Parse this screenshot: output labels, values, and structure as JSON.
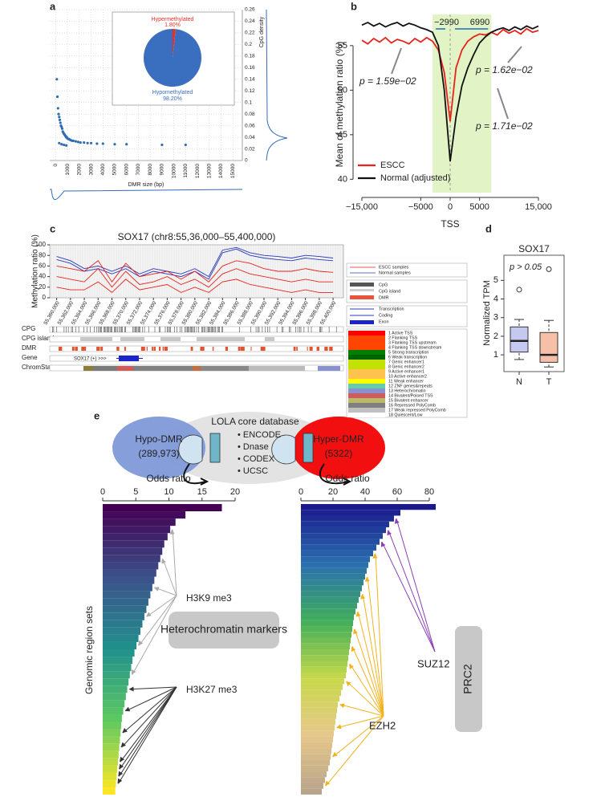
{
  "panel_labels": [
    "a",
    "b",
    "c",
    "d",
    "e"
  ],
  "chart_data": [
    {
      "type": "scatter",
      "xlabel": "DMR size (bp)",
      "ylabel": "CpG density",
      "color": "#2f6db5",
      "grid": true,
      "xlim": [
        -500,
        15800
      ],
      "ylim": [
        0,
        0.26
      ],
      "xticks": [
        0,
        1000,
        2000,
        3000,
        4000,
        5000,
        6000,
        7000,
        8000,
        9000,
        10000,
        11000,
        12000,
        13000,
        14000,
        15000
      ],
      "yticks": [
        0,
        0.02,
        0.04,
        0.06,
        0.08,
        0.1,
        0.12,
        0.14,
        0.16,
        0.18,
        0.2,
        0.22,
        0.24,
        0.26
      ],
      "x": [
        100,
        150,
        200,
        250,
        300,
        350,
        400,
        450,
        500,
        550,
        600,
        650,
        700,
        750,
        800,
        850,
        900,
        950,
        1000,
        1100,
        1200,
        1300,
        1400,
        1500,
        1700,
        1900,
        2100,
        2400,
        2700,
        3000,
        3500,
        4000,
        5000,
        6000,
        9000,
        11000,
        300,
        500,
        700,
        900
      ],
      "y": [
        0.14,
        0.11,
        0.09,
        0.08,
        0.075,
        0.07,
        0.065,
        0.06,
        0.058,
        0.055,
        0.05,
        0.048,
        0.046,
        0.045,
        0.043,
        0.042,
        0.04,
        0.04,
        0.038,
        0.037,
        0.036,
        0.035,
        0.034,
        0.034,
        0.033,
        0.032,
        0.031,
        0.031,
        0.03,
        0.03,
        0.029,
        0.029,
        0.028,
        0.028,
        0.027,
        0.027,
        0.03,
        0.028,
        0.027,
        0.026
      ]
    },
    {
      "type": "pie",
      "categories": [
        "Hypermethylated",
        "Hypomethylated"
      ],
      "values": [
        1.8,
        98.2
      ],
      "value_labels": [
        "1.80%",
        "98.20%"
      ],
      "colors": [
        "#e8302a",
        "#3a6fc0"
      ]
    },
    {
      "type": "line",
      "xlabel": "TSS",
      "ylabel": "Mean of methylation ratio (%)",
      "xlim": [
        -16500,
        16500
      ],
      "ylim": [
        38.5,
        58.5
      ],
      "xticks": [
        {
          "value": -15000,
          "label": "−15,000"
        },
        {
          "value": -5000,
          "label": "−5000"
        },
        0,
        5000,
        {
          "value": 15000,
          "label": "15,000"
        }
      ],
      "yticks": [
        40,
        45,
        50,
        55
      ],
      "region": [
        {
          "value": -2990,
          "label": "−2990"
        },
        6990
      ],
      "region_color": "#e2f3c6",
      "annotations": [
        "p = 1.59e−02",
        "p = 1.62e−02",
        "p = 1.71e−02"
      ],
      "legend": "lower left",
      "x": [
        -15000,
        -14000,
        -13000,
        -12000,
        -11000,
        -10000,
        -9000,
        -8000,
        -7000,
        -6000,
        -5000,
        -4000,
        -3000,
        -2000,
        -1000,
        0,
        1000,
        2000,
        3000,
        4000,
        5000,
        6000,
        7000,
        8000,
        9000,
        10000,
        11000,
        12000,
        13000,
        14000,
        15000
      ],
      "series": [
        {
          "name": "ESCC",
          "color": "#e8231b",
          "values": [
            55.6,
            55.2,
            55.8,
            55.4,
            55.9,
            55.3,
            55.7,
            55.5,
            55.2,
            55.8,
            55.4,
            55.9,
            55.5,
            54.5,
            52,
            46.5,
            52.5,
            54.5,
            55.5,
            56,
            56.3,
            56.2,
            56.5,
            56.2,
            56.8,
            56.4,
            56.7,
            56.3,
            56.9,
            56.5,
            56.7
          ]
        },
        {
          "name": "Normal (adjusted)",
          "color": "#111111",
          "values": [
            57.3,
            57.6,
            57.2,
            57.5,
            57.1,
            57.4,
            57.6,
            57.2,
            57.5,
            57.3,
            57.0,
            56.8,
            56.5,
            55,
            50,
            42,
            47,
            50.5,
            52.5,
            54,
            55.3,
            56,
            56.5,
            56.8,
            57,
            56.7,
            57.1,
            56.8,
            57.2,
            56.9,
            57.2
          ]
        }
      ]
    },
    {
      "type": "track",
      "title": "SOX17 (chr8:55,36,000–55,400,000)",
      "ylabel": "Methylation ratio (%)",
      "xlim": [
        55359000,
        55401500
      ],
      "ylim": [
        0,
        100
      ],
      "yticks": [
        0,
        20,
        40,
        60,
        80,
        100
      ],
      "xticks": [
        {
          "value": 55360000,
          "label": "55,360,000"
        },
        {
          "value": 55362000,
          "label": "55,362,000"
        },
        {
          "value": 55364000,
          "label": "55,364,000"
        },
        {
          "value": 55366000,
          "label": "55,366,000"
        },
        {
          "value": 55368000,
          "label": "55,368,000"
        },
        {
          "value": 55370000,
          "label": "55,370,000"
        },
        {
          "value": 55372000,
          "label": "55,372,000"
        },
        {
          "value": 55374000,
          "label": "55,374,000"
        },
        {
          "value": 55376000,
          "label": "55,376,000"
        },
        {
          "value": 55378000,
          "label": "55,378,000"
        },
        {
          "value": 55380000,
          "label": "55,380,000"
        },
        {
          "value": 55382000,
          "label": "55,382,000"
        },
        {
          "value": 55384000,
          "label": "55,384,000"
        },
        {
          "value": 55386000,
          "label": "55,386,000"
        },
        {
          "value": 55388000,
          "label": "55,388,000"
        },
        {
          "value": 55390000,
          "label": "55,390,000"
        },
        {
          "value": 55392000,
          "label": "55,392,000"
        },
        {
          "value": 55394000,
          "label": "55,394,000"
        },
        {
          "value": 55396000,
          "label": "55,396,000"
        },
        {
          "value": 55398000,
          "label": "55,398,000"
        },
        {
          "value": 55400000,
          "label": "55,400,000"
        }
      ],
      "x": [
        55360000,
        55362000,
        55364000,
        55366000,
        55368000,
        55370000,
        55372000,
        55374000,
        55376000,
        55378000,
        55380000,
        55382000,
        55384000,
        55386000,
        55388000,
        55390000,
        55392000,
        55394000,
        55396000,
        55398000,
        55400000
      ],
      "series": [
        {
          "color": "#2b3bb8",
          "values": [
            78,
            70,
            55,
            60,
            50,
            60,
            45,
            55,
            50,
            45,
            55,
            40,
            90,
            95,
            85,
            80,
            78,
            75,
            80,
            78,
            75
          ]
        },
        {
          "color": "#2b3bb8",
          "values": [
            72,
            65,
            50,
            55,
            45,
            55,
            40,
            50,
            45,
            40,
            50,
            35,
            85,
            92,
            80,
            75,
            72,
            70,
            75,
            72,
            70
          ]
        },
        {
          "color": "#e8231b",
          "values": [
            60,
            55,
            50,
            70,
            30,
            65,
            40,
            45,
            50,
            35,
            50,
            30,
            60,
            70,
            65,
            55,
            50,
            50,
            55,
            50,
            48
          ]
        },
        {
          "color": "#e8231b",
          "values": [
            40,
            35,
            30,
            55,
            20,
            50,
            25,
            30,
            40,
            25,
            35,
            20,
            45,
            55,
            45,
            40,
            35,
            30,
            35,
            30,
            30
          ]
        },
        {
          "color": "#e8231b",
          "values": [
            20,
            15,
            15,
            30,
            10,
            35,
            15,
            20,
            25,
            10,
            20,
            10,
            30,
            35,
            25,
            20,
            15,
            10,
            15,
            10,
            10
          ]
        }
      ],
      "tracks": [
        "CPG",
        "CPG island",
        "DMR",
        "Gene",
        "ChromState"
      ],
      "gene_label": "SOX17 (+) >>>",
      "legend": [
        {
          "label": "ESCC samples",
          "color": "#e8231b"
        },
        {
          "label": "Normal samples",
          "color": "#2b3bb8"
        }
      ],
      "legend2": [
        {
          "label": "CpG",
          "color": "#555555"
        },
        {
          "label": "CpG island",
          "color": "#cccccc"
        },
        {
          "label": "DMR",
          "color": "#e8553a"
        }
      ],
      "legend3": [
        {
          "label": "Transcription",
          "color": "#2b3bb8"
        },
        {
          "label": "Coding",
          "color": "#2b3bb8"
        },
        {
          "label": "Exon",
          "color": "#1a24c9"
        }
      ],
      "states": [
        {
          "label": "1 Active TSS",
          "color": "#ff0000"
        },
        {
          "label": "2 Flanking TSS",
          "color": "#ff4500"
        },
        {
          "label": "3 Flanking TSS upstream",
          "color": "#ff4500"
        },
        {
          "label": "4 Flanking TSS downstream",
          "color": "#ff4500"
        },
        {
          "label": "5 Strong transcription",
          "color": "#008000"
        },
        {
          "label": "6 Weak transcription",
          "color": "#006400"
        },
        {
          "label": "7 Genic enhancer1",
          "color": "#c2e105"
        },
        {
          "label": "8 Genic enhancer2",
          "color": "#c2e105"
        },
        {
          "label": "9 Active enhancer1",
          "color": "#ffc34d"
        },
        {
          "label": "10 Active enhancer2",
          "color": "#ffc34d"
        },
        {
          "label": "11 Weak enhancer",
          "color": "#ffff00"
        },
        {
          "label": "12 ZNF genes&repeats",
          "color": "#66cdaa"
        },
        {
          "label": "13 Heterochromatin",
          "color": "#8a91d0"
        },
        {
          "label": "14 Bivalent/Poised TSS",
          "color": "#cd5c5c"
        },
        {
          "label": "15 Bivalent enhancer",
          "color": "#bdb76b"
        },
        {
          "label": "16 Repressed PolyComb",
          "color": "#808080"
        },
        {
          "label": "17 Weak repressed PolyComb",
          "color": "#c0c0c0"
        },
        {
          "label": "18 Quiescent/Low",
          "color": "#ffffff"
        }
      ]
    },
    {
      "type": "box",
      "title": "SOX17",
      "ylabel": "Normalized TPM",
      "annotation": "p > 0.05",
      "ylim": [
        0.1,
        6.35
      ],
      "yticks": [
        1,
        2,
        3,
        4,
        5
      ],
      "categories": [
        "N",
        "T"
      ],
      "colors": [
        "#c5c8ef",
        "#f6c0a8"
      ],
      "boxes": [
        {
          "min": 0.75,
          "q1": 1.15,
          "median": 1.75,
          "q3": 2.5,
          "max": 2.9,
          "outliers": [
            4.5
          ]
        },
        {
          "min": 0.35,
          "q1": 0.6,
          "median": 1.0,
          "q3": 2.2,
          "max": 2.85,
          "outliers": [
            5.6
          ]
        }
      ]
    },
    {
      "type": "barh",
      "xlabel": "Odds ratio",
      "ylabel": "Genomic region sets",
      "xlim": [
        0,
        20
      ],
      "xticks": [
        0,
        5,
        10,
        15,
        20
      ],
      "colors": [
        "#440154",
        "#3b528b",
        "#21918c",
        "#5ec962",
        "#fde725"
      ],
      "annotations": [
        "H3K9 me3",
        "Heterochromatin markers",
        "H3K27 me3"
      ],
      "values": [
        18,
        12.5,
        11,
        10.2,
        9.8,
        9.3,
        9,
        8.7,
        8.4,
        8.1,
        7.8,
        7.5,
        7.2,
        6.9,
        6.6,
        6.3,
        6,
        5.7,
        5.4,
        5.1,
        4.8,
        4.5,
        4.3,
        4.1,
        3.9,
        3.7,
        3.5,
        3.3,
        3.1,
        2.9,
        2.8,
        2.7,
        2.6,
        2.5,
        2.4,
        2.3,
        2.2,
        2.1,
        2.0,
        1.9
      ]
    },
    {
      "type": "barh",
      "xlabel": "Odds ratio",
      "xlim": [
        0,
        86
      ],
      "xticks": [
        0,
        20,
        40,
        60,
        80
      ],
      "colors": [
        "#1a1a8c",
        "#2a6fb0",
        "#3fae5a",
        "#c8d94a",
        "#e6c88a",
        "#b8a48a"
      ],
      "annotations": [
        "SUZ12",
        "EZH2",
        "PRC2"
      ],
      "values": [
        84,
        62,
        58,
        55,
        53,
        51,
        49,
        47,
        45,
        43,
        42,
        41,
        40,
        39,
        38,
        37,
        36,
        35,
        34,
        33,
        32.5,
        32,
        31.5,
        31,
        30.5,
        30,
        29.5,
        29,
        28.5,
        28,
        27,
        26,
        25,
        24,
        23,
        22.5,
        22,
        21.5,
        21,
        20.5,
        20,
        19.5,
        19,
        18.5,
        18,
        17,
        16,
        15,
        14,
        13
      ]
    }
  ],
  "diagram": {
    "hypo": {
      "label": "Hypo-DMR",
      "count": "(289,973)"
    },
    "hyper": {
      "label": "Hyper-DMR",
      "count": "(5322)"
    },
    "database": {
      "title": "LOLA core database",
      "items": [
        "ENCODE",
        "Dnase",
        "CODEX",
        "UCSC"
      ]
    }
  }
}
